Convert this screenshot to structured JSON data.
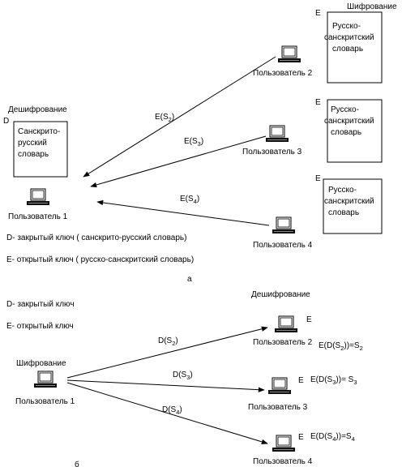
{
  "part_a": {
    "encryption_title": "Шифрование",
    "decryption_title": "Дешифрование",
    "key_d": "D",
    "key_e": "E",
    "dict_sanskrit_russian": [
      "Санскрито-",
      "русский",
      "словарь"
    ],
    "dict_russian_sanskrit": [
      "Русско-",
      "санскритский",
      "словарь"
    ],
    "user1": "Пользователь 1",
    "user2": "Пользователь 2",
    "user3": "Пользователь 3",
    "user4": "Пользователь 4",
    "arrow2": {
      "fn": "E(S",
      "sub": "2",
      "close": ")"
    },
    "arrow3": {
      "fn": "E(S",
      "sub": "3",
      "close": ")"
    },
    "arrow4": {
      "fn": "E(S",
      "sub": "4",
      "close": ")"
    },
    "legend_d": "D- закрытый ключ ( санскрито-русский словарь)",
    "legend_e": "E- открытый ключ ( русско-санскритский словарь)",
    "caption": "а"
  },
  "part_b": {
    "legend_d": "D- закрытый ключ",
    "legend_e": "E- открытый ключ",
    "decryption_title": "Дешифрование",
    "encryption_title": "Шифрование",
    "key_e": "E",
    "user1": "Пользователь 1",
    "user2": "Пользователь 2",
    "user3": "Пользователь 3",
    "user4": "Пользователь 4",
    "arrow2": {
      "fn": "D(S",
      "sub": "2",
      "close": ")"
    },
    "arrow3": {
      "fn": "D(S",
      "sub": "3",
      "close": ")"
    },
    "arrow4": {
      "fn": "D(S",
      "sub": "4",
      "close": ")"
    },
    "formula2": {
      "pre": "E(D(S",
      "sub1": "2",
      "mid": "))=S",
      "sub2": "2"
    },
    "formula3": {
      "pre": "E(D(S",
      "sub1": "3",
      "mid": "))= S",
      "sub2": "3"
    },
    "formula4": {
      "pre": "E(D(S",
      "sub1": "4",
      "mid": "))=S",
      "sub2": "4"
    },
    "caption": "б"
  }
}
